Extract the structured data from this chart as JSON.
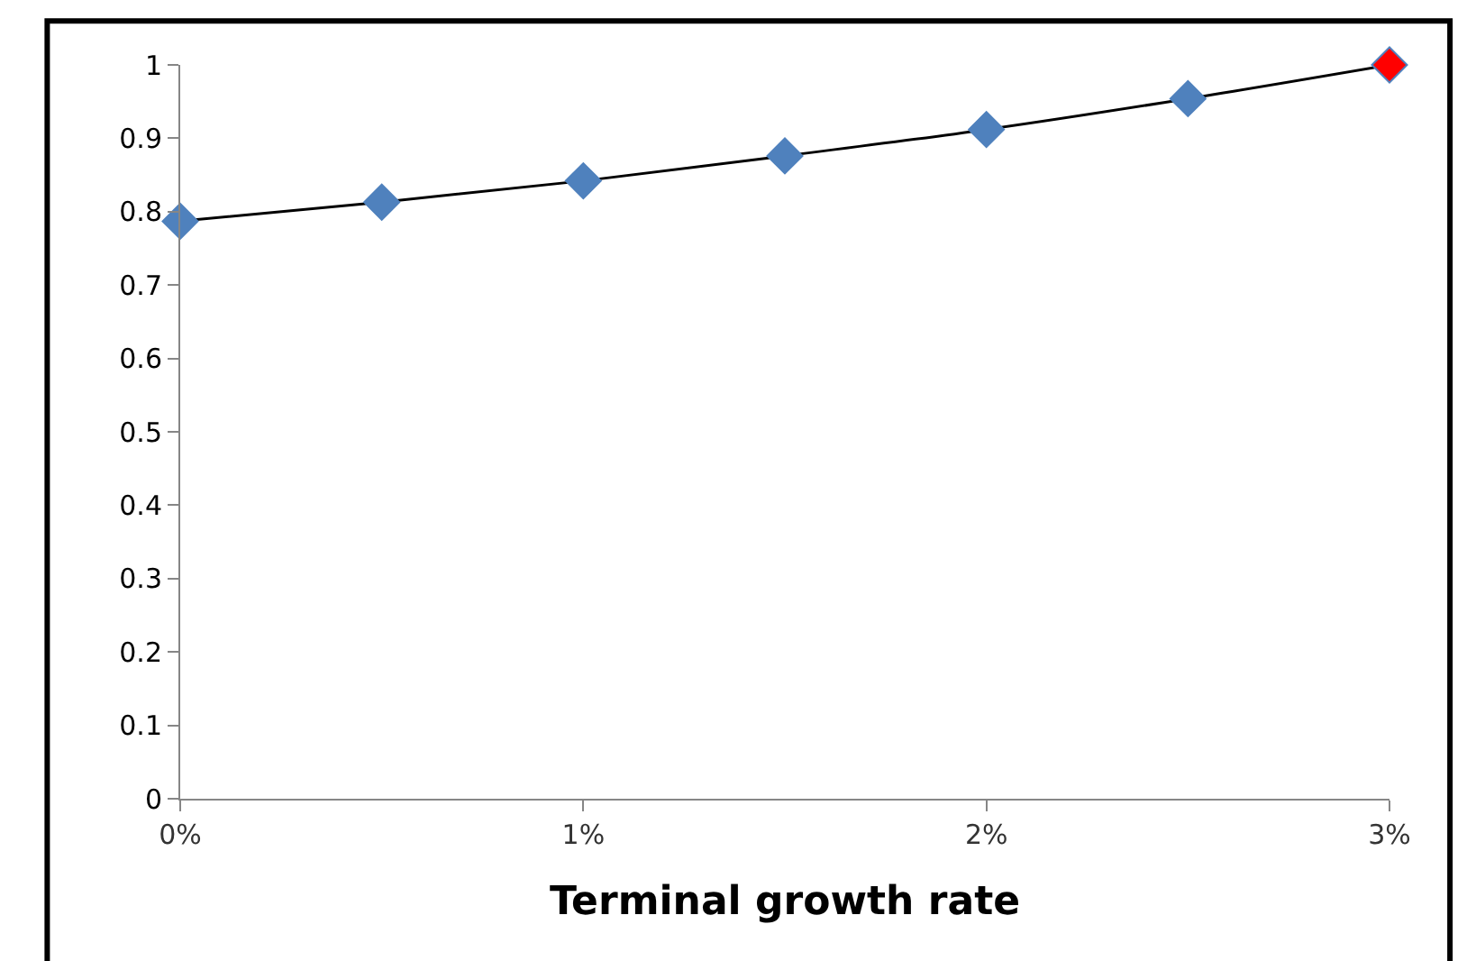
{
  "chart_data": {
    "type": "line",
    "xlabel": "Terminal growth rate",
    "x": [
      0,
      0.5,
      1,
      1.5,
      2,
      2.5,
      3
    ],
    "series": [
      {
        "color": "#000000",
        "marker": "diamond",
        "colors": [
          "#4f81bd",
          "#4f81bd",
          "#4f81bd",
          "#4f81bd",
          "#4f81bd",
          "#4f81bd",
          "#ff0000"
        ],
        "values": [
          0.787,
          0.813,
          0.842,
          0.876,
          0.912,
          0.954,
          1.0
        ]
      }
    ],
    "xlim": [
      0,
      3
    ],
    "xticks": [
      {
        "value": 0,
        "label": "0%"
      },
      {
        "value": 1,
        "label": "1%"
      },
      {
        "value": 2,
        "label": "2%"
      },
      {
        "value": 3,
        "label": "3%"
      }
    ],
    "ylim": [
      0,
      1
    ],
    "yticks": [
      0,
      0.1,
      0.2,
      0.3,
      0.4,
      0.5,
      0.6,
      0.7,
      0.8,
      0.9,
      1
    ],
    "grid": false
  }
}
